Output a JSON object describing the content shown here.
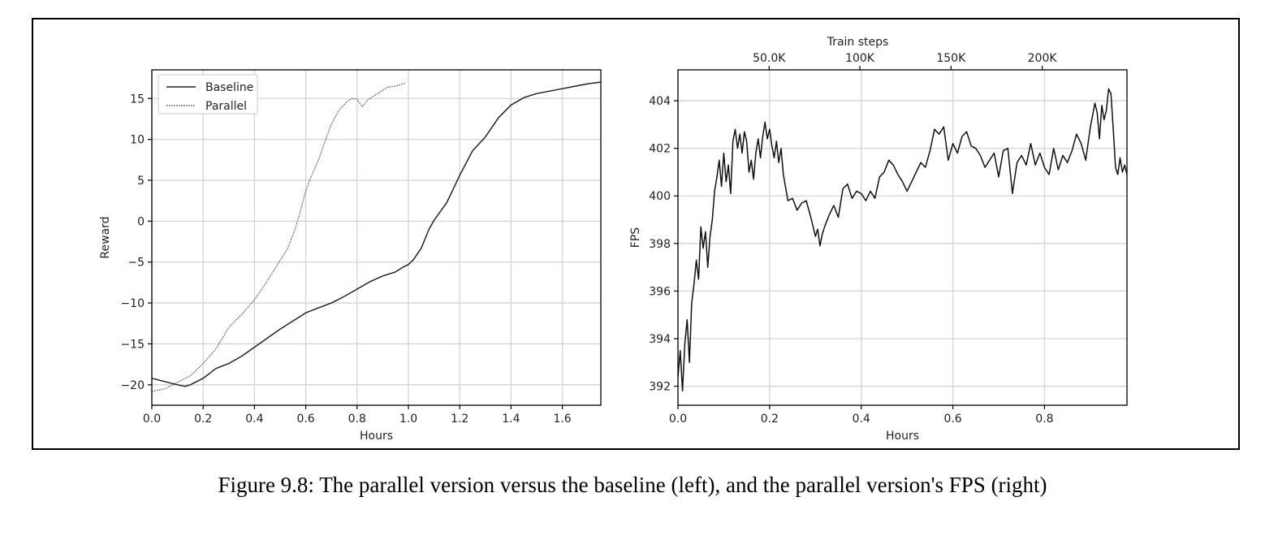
{
  "caption": "Figure 9.8: The parallel version versus the baseline (left), and the parallel version's FPS (right)",
  "chart_data": [
    {
      "type": "line",
      "xlabel": "Hours",
      "ylabel": "Reward",
      "xlim": [
        0.0,
        1.75
      ],
      "ylim": [
        -22.5,
        18.5
      ],
      "xticks": [
        0.0,
        0.2,
        0.4,
        0.6,
        0.8,
        1.0,
        1.2,
        1.4,
        1.6
      ],
      "xtick_labels": [
        "0.0",
        "0.2",
        "0.4",
        "0.6",
        "0.8",
        "1.0",
        "1.2",
        "1.4",
        "1.6"
      ],
      "yticks": [
        15,
        10,
        5,
        0,
        -5,
        -10,
        -15,
        -20
      ],
      "ytick_labels": [
        "15",
        "10",
        "5",
        "0",
        "−5",
        "−10",
        "−15",
        "−20"
      ],
      "grid": true,
      "legend_position": "top-left",
      "series": [
        {
          "name": "Baseline",
          "style": "solid",
          "color": "#222222",
          "x": [
            0.0,
            0.05,
            0.1,
            0.13,
            0.15,
            0.2,
            0.25,
            0.3,
            0.35,
            0.4,
            0.45,
            0.5,
            0.55,
            0.6,
            0.65,
            0.7,
            0.75,
            0.8,
            0.85,
            0.9,
            0.95,
            0.98,
            1.0,
            1.02,
            1.05,
            1.08,
            1.1,
            1.15,
            1.2,
            1.25,
            1.3,
            1.35,
            1.4,
            1.45,
            1.5,
            1.55,
            1.6,
            1.65,
            1.7,
            1.75
          ],
          "y": [
            -19.2,
            -19.6,
            -20.0,
            -20.2,
            -20.0,
            -19.2,
            -18.0,
            -17.4,
            -16.5,
            -15.4,
            -14.3,
            -13.2,
            -12.2,
            -11.2,
            -10.6,
            -10.0,
            -9.2,
            -8.3,
            -7.4,
            -6.7,
            -6.2,
            -5.6,
            -5.3,
            -4.7,
            -3.3,
            -1.0,
            0.1,
            2.3,
            5.6,
            8.6,
            10.3,
            12.6,
            14.2,
            15.1,
            15.6,
            15.9,
            16.2,
            16.5,
            16.8,
            17.0
          ]
        },
        {
          "name": "Parallel",
          "style": "dotted",
          "color": "#555555",
          "x": [
            0.0,
            0.05,
            0.1,
            0.15,
            0.2,
            0.25,
            0.3,
            0.35,
            0.4,
            0.45,
            0.5,
            0.53,
            0.56,
            0.58,
            0.6,
            0.62,
            0.65,
            0.68,
            0.7,
            0.73,
            0.76,
            0.78,
            0.8,
            0.82,
            0.84,
            0.86,
            0.88,
            0.9,
            0.92,
            0.95,
            0.97,
            0.99
          ],
          "y": [
            -20.8,
            -20.5,
            -19.7,
            -18.9,
            -17.4,
            -15.6,
            -13.0,
            -11.4,
            -9.6,
            -7.3,
            -4.8,
            -3.3,
            -0.8,
            1.3,
            3.7,
            5.4,
            7.5,
            10.2,
            11.9,
            13.6,
            14.6,
            15.0,
            14.9,
            14.0,
            14.8,
            15.2,
            15.6,
            16.0,
            16.4,
            16.5,
            16.7,
            16.9
          ]
        }
      ]
    },
    {
      "type": "line",
      "xlabel": "Hours",
      "ylabel": "FPS",
      "secondary_xlabel": "Train steps",
      "xlim": [
        0.0,
        0.98
      ],
      "ylim": [
        391.2,
        405.3
      ],
      "xticks": [
        0.0,
        0.2,
        0.4,
        0.6,
        0.8
      ],
      "xtick_labels": [
        "0.0",
        "0.2",
        "0.4",
        "0.6",
        "0.8"
      ],
      "yticks": [
        404,
        402,
        400,
        398,
        396,
        394,
        392
      ],
      "ytick_labels": [
        "404",
        "402",
        "400",
        "398",
        "396",
        "394",
        "392"
      ],
      "top_ticks_hours": [
        0.199,
        0.397,
        0.596,
        0.795
      ],
      "top_tick_labels": [
        "50.0K",
        "100K",
        "150K",
        "200K"
      ],
      "grid": true,
      "series": [
        {
          "name": "",
          "style": "solid",
          "color": "#111111",
          "x": [
            0.0,
            0.005,
            0.01,
            0.015,
            0.02,
            0.025,
            0.03,
            0.035,
            0.04,
            0.045,
            0.05,
            0.055,
            0.06,
            0.065,
            0.07,
            0.075,
            0.08,
            0.085,
            0.09,
            0.095,
            0.1,
            0.105,
            0.11,
            0.115,
            0.12,
            0.125,
            0.13,
            0.135,
            0.14,
            0.145,
            0.15,
            0.155,
            0.16,
            0.165,
            0.17,
            0.175,
            0.18,
            0.185,
            0.19,
            0.195,
            0.2,
            0.205,
            0.21,
            0.215,
            0.22,
            0.225,
            0.23,
            0.24,
            0.25,
            0.26,
            0.27,
            0.28,
            0.29,
            0.3,
            0.305,
            0.31,
            0.315,
            0.32,
            0.33,
            0.34,
            0.35,
            0.36,
            0.37,
            0.38,
            0.39,
            0.4,
            0.41,
            0.42,
            0.43,
            0.44,
            0.45,
            0.46,
            0.47,
            0.48,
            0.49,
            0.5,
            0.51,
            0.52,
            0.53,
            0.54,
            0.55,
            0.56,
            0.57,
            0.58,
            0.59,
            0.6,
            0.61,
            0.62,
            0.63,
            0.64,
            0.65,
            0.66,
            0.67,
            0.68,
            0.69,
            0.7,
            0.71,
            0.72,
            0.73,
            0.74,
            0.75,
            0.76,
            0.77,
            0.78,
            0.79,
            0.8,
            0.81,
            0.82,
            0.83,
            0.84,
            0.85,
            0.86,
            0.87,
            0.88,
            0.89,
            0.9,
            0.905,
            0.91,
            0.915,
            0.92,
            0.925,
            0.93,
            0.935,
            0.94,
            0.945,
            0.95,
            0.955,
            0.96,
            0.965,
            0.97,
            0.975,
            0.98
          ],
          "y": [
            392.4,
            393.5,
            391.8,
            393.8,
            394.8,
            393.0,
            395.5,
            396.3,
            397.3,
            396.5,
            398.7,
            397.8,
            398.5,
            397.0,
            398.3,
            399.0,
            400.2,
            400.8,
            401.5,
            400.4,
            401.8,
            400.6,
            401.3,
            400.1,
            402.3,
            402.8,
            402.0,
            402.6,
            401.8,
            402.7,
            402.3,
            401.0,
            401.5,
            400.7,
            401.8,
            402.4,
            401.6,
            402.5,
            403.1,
            402.4,
            402.8,
            402.1,
            401.6,
            402.3,
            401.4,
            402.0,
            400.9,
            399.8,
            399.9,
            399.4,
            399.7,
            399.8,
            399.1,
            398.3,
            398.6,
            397.9,
            398.4,
            398.7,
            399.2,
            399.6,
            399.1,
            400.3,
            400.5,
            399.9,
            400.2,
            400.1,
            399.8,
            400.2,
            399.9,
            400.8,
            401.0,
            401.5,
            401.3,
            400.9,
            400.6,
            400.2,
            400.6,
            401.0,
            401.4,
            401.2,
            401.9,
            402.8,
            402.6,
            402.9,
            401.5,
            402.2,
            401.8,
            402.5,
            402.7,
            402.1,
            402.0,
            401.7,
            401.2,
            401.5,
            401.8,
            400.8,
            401.9,
            402.0,
            400.1,
            401.4,
            401.7,
            401.3,
            402.2,
            401.3,
            401.8,
            401.2,
            400.9,
            402.0,
            401.1,
            401.7,
            401.4,
            401.9,
            402.6,
            402.2,
            401.5,
            402.9,
            403.4,
            403.9,
            403.5,
            402.4,
            403.8,
            403.2,
            403.6,
            404.5,
            404.3,
            402.8,
            401.2,
            400.9,
            401.6,
            401.0,
            401.3,
            400.9
          ]
        }
      ]
    }
  ]
}
